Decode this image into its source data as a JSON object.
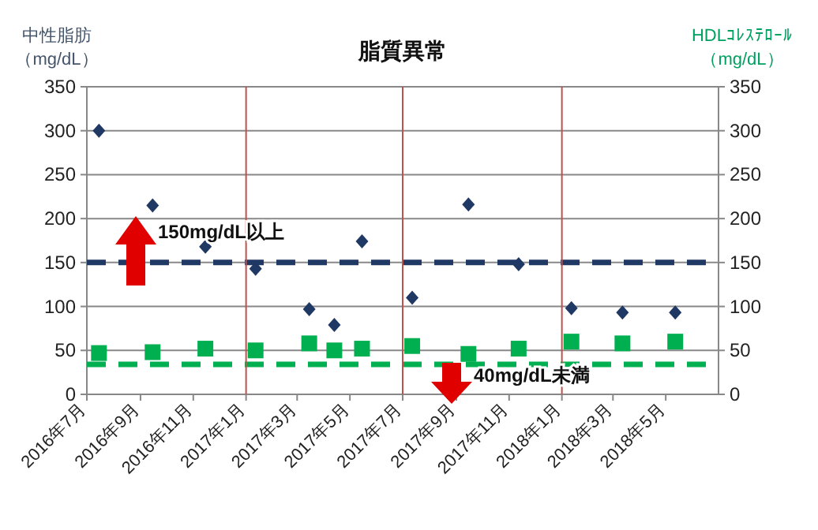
{
  "chart_data": {
    "type": "scatter",
    "title": "脂質異常",
    "ylabel": "中性脂肪（mg/dL）",
    "y2label": "HDLｺﾚｽﾃﾛｰﾙ（mg/dL）",
    "x": [
      "2016-07-15",
      "2016-09-15",
      "2016-11-15",
      "2017-01-12",
      "2017-03-15",
      "2017-04-13",
      "2017-05-15",
      "2017-07-12",
      "2017-09-15",
      "2017-11-12",
      "2018-01-12",
      "2018-03-12",
      "2018-05-12"
    ],
    "series": [
      {
        "color": "#1f3864",
        "marker": "diamond",
        "values": [
          300,
          215,
          168,
          143,
          97,
          79,
          174,
          110,
          216,
          148,
          98,
          93,
          93
        ]
      },
      {
        "color": "#00b050",
        "marker": "square",
        "axis": "y2",
        "values": [
          47,
          48,
          52,
          50,
          58,
          50,
          52,
          55,
          46,
          52,
          60,
          58,
          60
        ]
      }
    ],
    "xlim": [
      "2016-07",
      "2018-07"
    ],
    "xticks": [
      {
        "value": "2016-07",
        "label": "2016年7月"
      },
      {
        "value": "2016-09",
        "label": "2016年9月"
      },
      {
        "value": "2016-11",
        "label": "2016年11月"
      },
      {
        "value": "2017-01",
        "label": "2017年1月"
      },
      {
        "value": "2017-03",
        "label": "2017年3月"
      },
      {
        "value": "2017-05",
        "label": "2017年5月"
      },
      {
        "value": "2017-07",
        "label": "2017年7月"
      },
      {
        "value": "2017-09",
        "label": "2017年9月"
      },
      {
        "value": "2017-11",
        "label": "2017年11月"
      },
      {
        "value": "2018-01",
        "label": "2018年1月"
      },
      {
        "value": "2018-03",
        "label": "2018年3月"
      },
      {
        "value": "2018-05",
        "label": "2018年5月"
      }
    ],
    "ylim": [
      0,
      350
    ],
    "yticks": [
      0,
      50,
      100,
      150,
      200,
      250,
      300,
      350
    ],
    "y2lim": [
      0,
      350
    ],
    "y2ticks": [
      0,
      50,
      100,
      150,
      200,
      250,
      300,
      350
    ],
    "grid": "y",
    "ref_lines": [
      {
        "axis": "y",
        "value": 150,
        "color": "#1f3864",
        "line_style": "dashed"
      },
      {
        "axis": "y2",
        "value": 34,
        "color": "#00b050",
        "line_style": "dashed"
      },
      {
        "axis": "x",
        "value": "2017-01",
        "color": "#c0504d",
        "line_style": "solid"
      },
      {
        "axis": "x",
        "value": "2017-07",
        "color": "#c0504d",
        "line_style": "solid"
      },
      {
        "axis": "x",
        "value": "2018-01",
        "color": "#c0504d",
        "line_style": "solid"
      }
    ],
    "annotations": [
      "150mg/dL以上",
      "40mg/dL未満"
    ]
  }
}
